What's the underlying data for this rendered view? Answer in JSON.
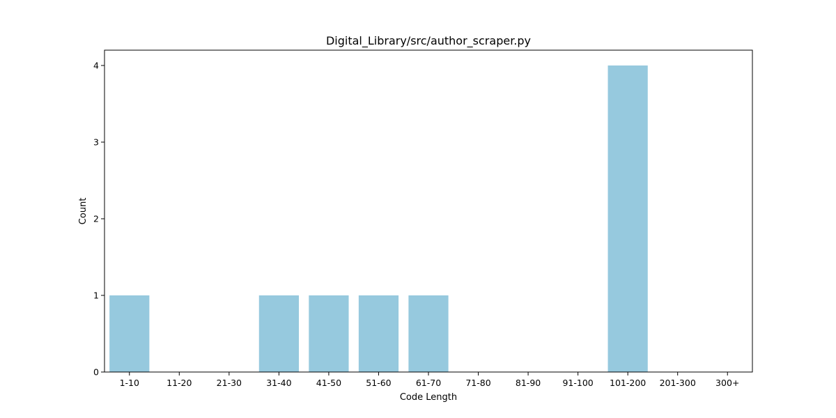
{
  "chart_data": {
    "type": "bar",
    "title": "Digital_Library/src/author_scraper.py",
    "xlabel": "Code Length",
    "ylabel": "Count",
    "categories": [
      "1-10",
      "11-20",
      "21-30",
      "31-40",
      "41-50",
      "51-60",
      "61-70",
      "71-80",
      "81-90",
      "91-100",
      "101-200",
      "201-300",
      "300+"
    ],
    "values": [
      1,
      0,
      0,
      1,
      1,
      1,
      1,
      0,
      0,
      0,
      4,
      0,
      0
    ],
    "ylim": [
      0,
      4.2
    ],
    "yticks": [
      0,
      1,
      2,
      3,
      4
    ],
    "bar_color": "#96c9de",
    "grid": false,
    "legend": "none"
  }
}
